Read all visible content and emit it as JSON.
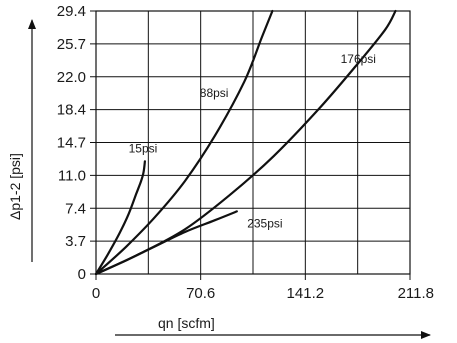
{
  "chart_data": {
    "type": "line",
    "xlabel": "qn [scfm]",
    "ylabel": "Δp1-2 [psi]",
    "xlim": [
      0,
      211.8
    ],
    "ylim": [
      0,
      29.4
    ],
    "x_ticks": [
      "0",
      "70.6",
      "141.2",
      "211.8"
    ],
    "y_ticks": [
      "0",
      "3.7",
      "7.4",
      "11.0",
      "14.7",
      "18.4",
      "22.0",
      "25.7",
      "29.4"
    ],
    "grid": true,
    "series": [
      {
        "name": "15psi",
        "label_at": [
          22,
          13.6
        ],
        "points": [
          [
            0,
            0
          ],
          [
            8,
            2.2
          ],
          [
            16,
            4.6
          ],
          [
            22,
            6.7
          ],
          [
            27,
            8.9
          ],
          [
            30,
            10.2
          ],
          [
            32,
            11.3
          ],
          [
            33,
            12.6
          ]
        ]
      },
      {
        "name": "88psi",
        "label_at": [
          70,
          19.8
        ],
        "points": [
          [
            0,
            0
          ],
          [
            20,
            3.0
          ],
          [
            40,
            6.4
          ],
          [
            60,
            10.4
          ],
          [
            80,
            15.4
          ],
          [
            100,
            21.5
          ],
          [
            112,
            26.5
          ],
          [
            119,
            29.4
          ]
        ]
      },
      {
        "name": "176psi",
        "label_at": [
          165,
          23.6
        ],
        "points": [
          [
            0,
            0
          ],
          [
            30,
            2.3
          ],
          [
            60,
            5.0
          ],
          [
            90,
            8.8
          ],
          [
            120,
            13.2
          ],
          [
            150,
            18.4
          ],
          [
            175,
            23.2
          ],
          [
            195,
            27.3
          ],
          [
            202,
            29.4
          ]
        ]
      },
      {
        "name": "235psi",
        "label_at": [
          102,
          5.2
        ],
        "points": [
          [
            0,
            0
          ],
          [
            20,
            1.5
          ],
          [
            40,
            3.1
          ],
          [
            60,
            4.7
          ],
          [
            80,
            6.0
          ],
          [
            95,
            7.0
          ]
        ]
      }
    ]
  }
}
